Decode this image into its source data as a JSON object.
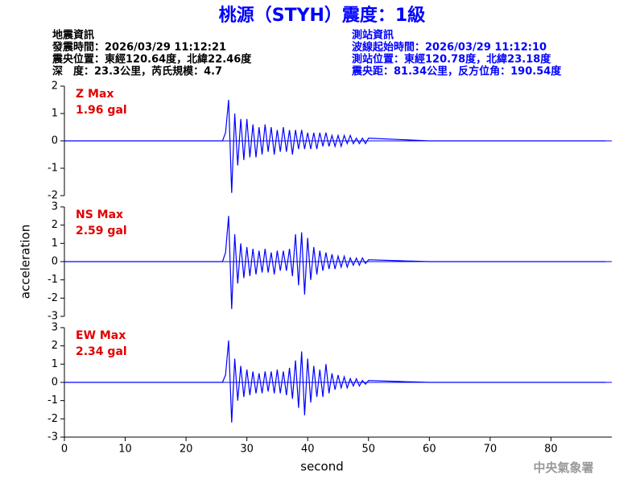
{
  "title": "桃源（STYH）震度：1級",
  "event_info": [
    "地震資訊",
    "發震時間：2026/03/29 11:12:21",
    "震央位置：東經120.64度，北緯22.46度",
    "深　度：23.3公里，芮氏規模：4.7"
  ],
  "station_info": [
    "測站資訊",
    "波線起始時間：2026/03/29 11:12:10",
    "測站位置：東經120.78度，北緯23.18度",
    "震央距：81.34公里，反方位角：190.54度"
  ],
  "watermark": "中央氣象署",
  "chart_data": [
    {
      "type": "line",
      "annotation": [
        "Z Max",
        "1.96 gal"
      ],
      "ylim": [
        -2,
        2
      ],
      "yticks": [
        -2,
        -1,
        0,
        1,
        2
      ],
      "xlim": [
        0,
        90
      ],
      "x": [
        0,
        10,
        20,
        26,
        26.5,
        27,
        27.5,
        28,
        28.5,
        29,
        29.5,
        30,
        30.5,
        31,
        31.5,
        32,
        32.5,
        33,
        33.5,
        34,
        34.5,
        35,
        35.5,
        36,
        36.5,
        37,
        37.5,
        38,
        38.5,
        39,
        39.5,
        40,
        40.5,
        41,
        41.5,
        42,
        42.5,
        43,
        43.5,
        44,
        44.5,
        45,
        45.5,
        46,
        46.5,
        47,
        47.5,
        48,
        48.5,
        49,
        49.5,
        50,
        55,
        60,
        70,
        80,
        89
      ],
      "series": [
        {
          "name": "Z",
          "color": "#0000ff",
          "values": [
            0,
            0,
            0,
            0,
            0.3,
            1.5,
            -1.9,
            1.0,
            -0.9,
            0.8,
            -0.7,
            0.8,
            -0.6,
            0.6,
            -0.6,
            0.5,
            -0.5,
            0.6,
            -0.4,
            0.5,
            -0.5,
            0.4,
            -0.4,
            0.5,
            -0.4,
            0.4,
            -0.5,
            0.4,
            -0.3,
            0.4,
            -0.3,
            0.3,
            -0.3,
            0.3,
            -0.3,
            0.3,
            -0.2,
            0.3,
            -0.2,
            0.2,
            -0.2,
            0.2,
            -0.2,
            0.2,
            -0.1,
            0.2,
            -0.1,
            0.1,
            -0.1,
            0.1,
            -0.1,
            0.1,
            0.05,
            0,
            0,
            0,
            0
          ]
        }
      ]
    },
    {
      "type": "line",
      "annotation": [
        "NS Max",
        "2.59 gal"
      ],
      "ylim": [
        -3,
        3
      ],
      "yticks": [
        -3,
        -2,
        -1,
        0,
        1,
        2,
        3
      ],
      "xlim": [
        0,
        90
      ],
      "ylabel": "acceleration",
      "x": [
        0,
        10,
        20,
        26,
        26.5,
        27,
        27.5,
        28,
        28.5,
        29,
        29.5,
        30,
        30.5,
        31,
        31.5,
        32,
        32.5,
        33,
        33.5,
        34,
        34.5,
        35,
        35.5,
        36,
        36.5,
        37,
        37.5,
        38,
        38.5,
        39,
        39.5,
        40,
        40.5,
        41,
        41.5,
        42,
        42.5,
        43,
        43.5,
        44,
        44.5,
        45,
        45.5,
        46,
        46.5,
        47,
        47.5,
        48,
        48.5,
        49,
        49.5,
        50,
        55,
        60,
        70,
        80,
        89
      ],
      "series": [
        {
          "name": "NS",
          "color": "#0000ff",
          "values": [
            0,
            0,
            0,
            0,
            0.5,
            2.5,
            -2.6,
            1.5,
            -1.2,
            1.0,
            -0.9,
            0.8,
            -0.8,
            0.7,
            -0.7,
            0.6,
            -0.6,
            0.7,
            -0.6,
            0.5,
            -0.7,
            0.6,
            -0.5,
            0.6,
            -0.5,
            0.7,
            -0.8,
            1.5,
            -1.3,
            1.6,
            -1.8,
            1.3,
            -1.0,
            0.8,
            -0.7,
            0.6,
            -0.5,
            0.5,
            -0.4,
            0.4,
            -0.4,
            0.3,
            -0.3,
            0.3,
            -0.3,
            0.2,
            -0.2,
            0.2,
            -0.2,
            0.2,
            -0.1,
            0.1,
            0.05,
            0,
            0,
            0,
            0
          ]
        }
      ]
    },
    {
      "type": "line",
      "annotation": [
        "EW Max",
        "2.34 gal"
      ],
      "ylim": [
        -3,
        3
      ],
      "yticks": [
        -3,
        -2,
        -1,
        0,
        1,
        2,
        3
      ],
      "xlim": [
        0,
        90
      ],
      "xticks": [
        0,
        10,
        20,
        30,
        40,
        50,
        60,
        70,
        80
      ],
      "xlabel": "second",
      "x": [
        0,
        10,
        20,
        26,
        26.5,
        27,
        27.5,
        28,
        28.5,
        29,
        29.5,
        30,
        30.5,
        31,
        31.5,
        32,
        32.5,
        33,
        33.5,
        34,
        34.5,
        35,
        35.5,
        36,
        36.5,
        37,
        37.5,
        38,
        38.5,
        39,
        39.5,
        40,
        40.5,
        41,
        41.5,
        42,
        42.5,
        43,
        43.5,
        44,
        44.5,
        45,
        45.5,
        46,
        46.5,
        47,
        47.5,
        48,
        48.5,
        49,
        49.5,
        50,
        55,
        60,
        70,
        80,
        89
      ],
      "series": [
        {
          "name": "EW",
          "color": "#0000ff",
          "values": [
            0,
            0,
            0,
            0,
            0.4,
            2.3,
            -2.2,
            1.3,
            -1.0,
            0.9,
            -0.8,
            0.7,
            -0.7,
            0.6,
            -0.6,
            0.5,
            -0.6,
            0.6,
            -0.5,
            0.6,
            -0.6,
            0.7,
            -0.6,
            0.6,
            -0.7,
            0.8,
            -0.9,
            1.2,
            -1.4,
            1.7,
            -1.8,
            1.3,
            -1.1,
            0.9,
            -0.8,
            0.7,
            -0.8,
            1.0,
            -0.6,
            0.5,
            -0.4,
            0.4,
            -0.3,
            0.3,
            -0.3,
            0.2,
            -0.2,
            0.2,
            -0.2,
            0.1,
            -0.1,
            0.1,
            0.05,
            0,
            0,
            0,
            0
          ]
        }
      ]
    }
  ]
}
